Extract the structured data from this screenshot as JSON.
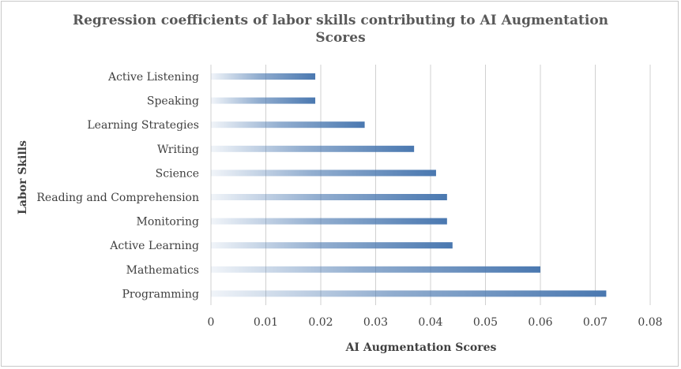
{
  "chart_data": {
    "type": "bar",
    "orientation": "horizontal",
    "title_lines": [
      "Regression coefficients of labor skills contributing to AI Augmentation",
      "Scores"
    ],
    "xlabel": "AI Augmentation Scores",
    "ylabel": "Labor Skills",
    "categories": [
      "Active Listening",
      "Speaking",
      "Learning Strategies",
      "Writing",
      "Science",
      "Reading and Comprehension",
      "Monitoring",
      "Active Learning",
      "Mathematics",
      "Programming"
    ],
    "values": [
      0.019,
      0.019,
      0.028,
      0.037,
      0.041,
      0.043,
      0.043,
      0.044,
      0.06,
      0.072
    ],
    "xlim": [
      0,
      0.08
    ],
    "xticks": [
      "0",
      "0.01",
      "0.02",
      "0.03",
      "0.04",
      "0.05",
      "0.06",
      "0.07",
      "0.08"
    ],
    "grid": "vertical",
    "legend": "none",
    "bar_color": "#4a78b0"
  }
}
